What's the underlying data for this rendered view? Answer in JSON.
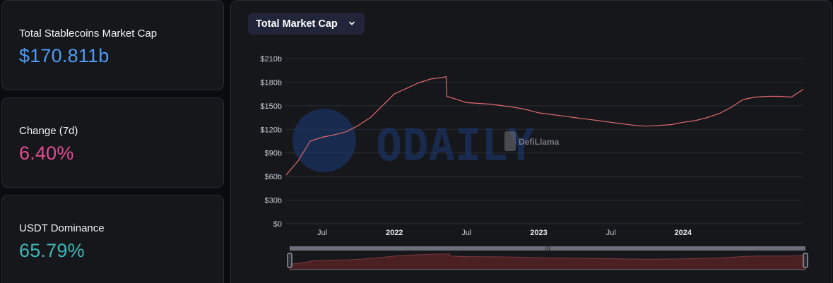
{
  "stats": {
    "market_cap": {
      "label": "Total Stablecoins Market Cap",
      "value": "$170.811b",
      "color": "#4f9bf5"
    },
    "change_7d": {
      "label": "Change (7d)",
      "value": "6.40%",
      "color": "#e64b92"
    },
    "usdt_dominance": {
      "label": "USDT Dominance",
      "value": "65.79%",
      "color": "#3fb5b5"
    }
  },
  "chart": {
    "metric_label": "Total Market Cap",
    "watermark_odaily": "ODAILY",
    "watermark_defillama": "DefiLlama",
    "line_color": "#e06b6b"
  },
  "chart_data": {
    "type": "line",
    "title": "",
    "xlabel": "",
    "ylabel": "",
    "y_ticks": [
      "$0",
      "$30b",
      "$60b",
      "$90b",
      "$120b",
      "$150b",
      "$180b",
      "$210b"
    ],
    "ylim": [
      0,
      210
    ],
    "y_unit": "billion USD",
    "x_ticks": [
      "Jul",
      "2022",
      "Jul",
      "2023",
      "Jul",
      "2024"
    ],
    "x_tick_dates": [
      "2021-07",
      "2022-01",
      "2022-07",
      "2023-01",
      "2023-07",
      "2024-01"
    ],
    "xlim": [
      "2021-04",
      "2024-11"
    ],
    "grid": true,
    "series": [
      {
        "x": [
          "2021-04",
          "2021-05",
          "2021-06",
          "2021-07",
          "2021-08",
          "2021-09",
          "2021-10",
          "2021-11",
          "2021-12",
          "2022-01",
          "2022-02",
          "2022-03",
          "2022-04",
          "2022-05",
          "2022-05-10",
          "2022-05-12",
          "2022-06",
          "2022-07",
          "2022-08",
          "2022-09",
          "2022-10",
          "2022-11",
          "2022-12",
          "2023-01",
          "2023-02",
          "2023-03",
          "2023-04",
          "2023-05",
          "2023-06",
          "2023-07",
          "2023-08",
          "2023-09",
          "2023-10",
          "2023-11",
          "2023-12",
          "2024-01",
          "2024-02",
          "2024-03",
          "2024-04",
          "2024-05",
          "2024-06",
          "2024-07",
          "2024-08",
          "2024-09",
          "2024-10",
          "2024-11"
        ],
        "values": [
          62,
          80,
          105,
          110,
          113,
          117,
          125,
          135,
          150,
          165,
          172,
          179,
          184,
          186,
          187,
          162,
          159,
          154,
          153,
          152,
          150,
          148,
          145,
          141,
          139,
          137,
          135,
          133,
          131,
          129,
          127,
          125,
          124,
          125,
          126,
          129,
          131,
          135,
          140,
          148,
          158,
          161,
          162,
          162,
          161,
          171
        ]
      }
    ]
  }
}
